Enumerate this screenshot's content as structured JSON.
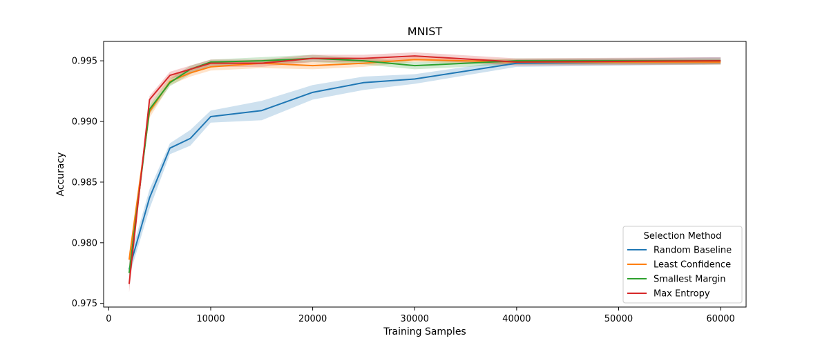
{
  "chart_data": {
    "type": "line",
    "title": "MNIST",
    "xlabel": "Training Samples",
    "ylabel": "Accuracy",
    "xlim": [
      -500,
      62500
    ],
    "ylim": [
      0.9747,
      0.9966
    ],
    "x_ticks": [
      0,
      10000,
      20000,
      30000,
      40000,
      50000,
      60000
    ],
    "x_tick_labels": [
      "0",
      "10000",
      "20000",
      "30000",
      "40000",
      "50000",
      "60000"
    ],
    "y_ticks": [
      0.975,
      0.98,
      0.985,
      0.99,
      0.995
    ],
    "y_tick_labels": [
      "0.975",
      "0.980",
      "0.985",
      "0.990",
      "0.995"
    ],
    "grid": false,
    "legend": {
      "title": "Selection Method",
      "position": "lower-right"
    },
    "x": [
      2000,
      4000,
      6000,
      8000,
      10000,
      15000,
      20000,
      25000,
      30000,
      40000,
      60000
    ],
    "series": [
      {
        "name": "Random Baseline",
        "color": "#1f77b4",
        "values": [
          0.9778,
          0.9837,
          0.9878,
          0.9886,
          0.9904,
          0.9909,
          0.9924,
          0.9932,
          0.9935,
          0.9948,
          0.995
        ],
        "lower": [
          0.9772,
          0.9828,
          0.9873,
          0.988,
          0.9899,
          0.9901,
          0.9918,
          0.9926,
          0.9931,
          0.9945,
          0.9947
        ],
        "upper": [
          0.9785,
          0.9844,
          0.9882,
          0.9893,
          0.9909,
          0.9917,
          0.993,
          0.9937,
          0.9939,
          0.9951,
          0.9953
        ]
      },
      {
        "name": "Least Confidence",
        "color": "#ff7f0e",
        "values": [
          0.9786,
          0.9908,
          0.9933,
          0.994,
          0.9945,
          0.9948,
          0.9946,
          0.9948,
          0.9951,
          0.9949,
          0.9949
        ],
        "lower": [
          0.978,
          0.9903,
          0.993,
          0.9937,
          0.9942,
          0.9944,
          0.9943,
          0.9945,
          0.9949,
          0.9947,
          0.9947
        ],
        "upper": [
          0.9792,
          0.9913,
          0.9937,
          0.9944,
          0.9949,
          0.9951,
          0.9949,
          0.9951,
          0.9953,
          0.9951,
          0.9951
        ]
      },
      {
        "name": "Smallest Margin",
        "color": "#2ca02c",
        "values": [
          0.9775,
          0.991,
          0.9932,
          0.9943,
          0.9949,
          0.995,
          0.9952,
          0.995,
          0.9946,
          0.995,
          0.995
        ],
        "lower": [
          0.9769,
          0.9906,
          0.9929,
          0.9939,
          0.9946,
          0.9947,
          0.9949,
          0.9947,
          0.9943,
          0.9947,
          0.9947
        ],
        "upper": [
          0.978,
          0.9914,
          0.9935,
          0.9946,
          0.9951,
          0.9953,
          0.9955,
          0.9952,
          0.9949,
          0.9952,
          0.9952
        ]
      },
      {
        "name": "Max Entropy",
        "color": "#d62728",
        "values": [
          0.9766,
          0.9918,
          0.9938,
          0.9943,
          0.9948,
          0.9948,
          0.9952,
          0.9952,
          0.9954,
          0.9949,
          0.995
        ],
        "lower": [
          0.9759,
          0.9914,
          0.9935,
          0.994,
          0.9945,
          0.9945,
          0.9949,
          0.9949,
          0.9951,
          0.9946,
          0.9947
        ],
        "upper": [
          0.9772,
          0.9921,
          0.9941,
          0.9946,
          0.9951,
          0.9951,
          0.9955,
          0.9955,
          0.9957,
          0.9952,
          0.9953
        ]
      }
    ]
  }
}
